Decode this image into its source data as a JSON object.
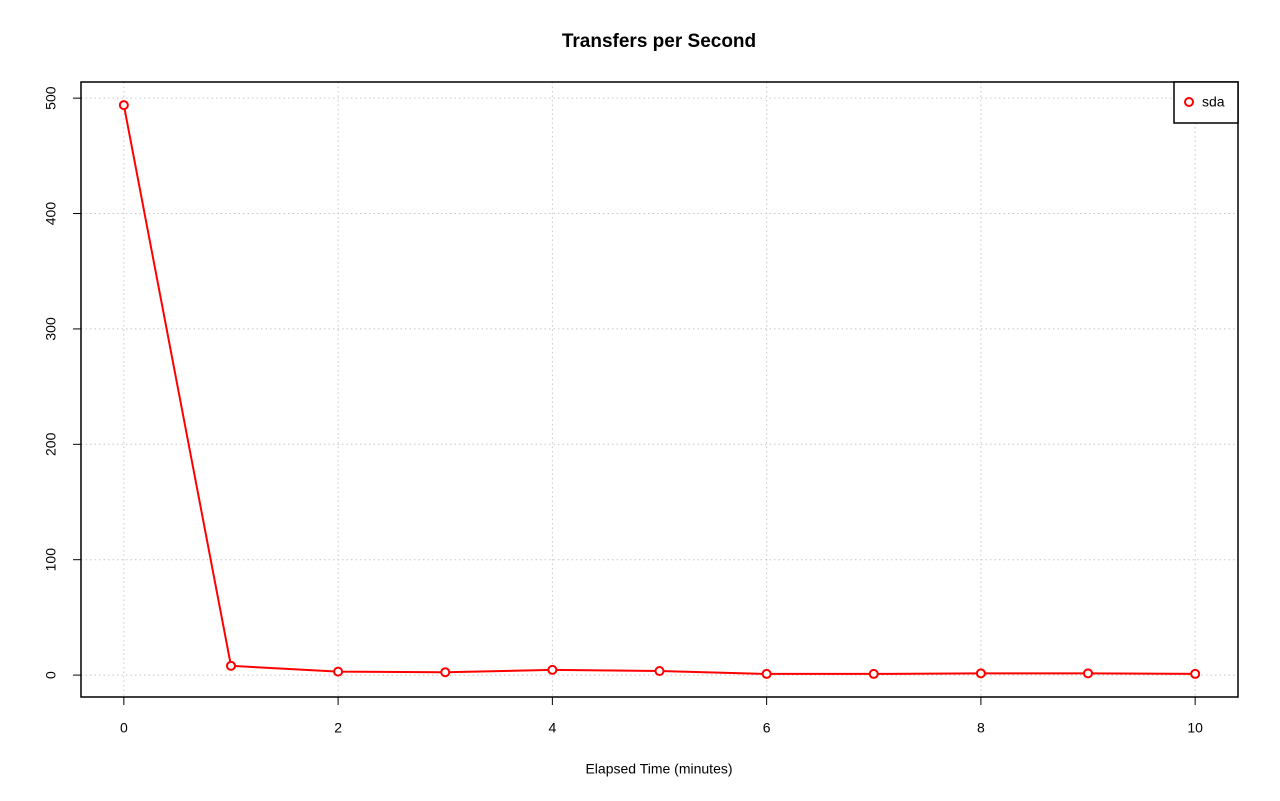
{
  "chart_data": {
    "type": "line",
    "title": "Transfers per Second",
    "x_label": "Elapsed Time (minutes)",
    "x": [
      0,
      1,
      2,
      3,
      4,
      5,
      6,
      7,
      8,
      9,
      10
    ],
    "series": [
      {
        "name": "sda",
        "color": "#ff0000",
        "values": [
          494,
          8,
          3,
          2.5,
          4.5,
          3.5,
          1,
          1,
          1.5,
          1.5,
          1
        ]
      }
    ],
    "xlim": [
      -0.4,
      10.4
    ],
    "ylim": [
      -19,
      514
    ],
    "xticks": [
      0,
      2,
      4,
      6,
      8,
      10
    ],
    "yticks": [
      0,
      100,
      200,
      300,
      400,
      500
    ],
    "grid": true,
    "legend": "top-right"
  }
}
